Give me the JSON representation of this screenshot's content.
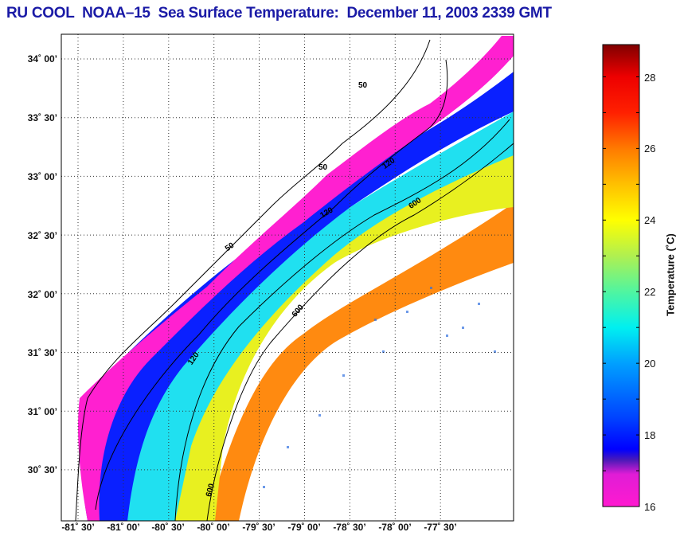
{
  "title": "RU COOL  NOAA–15  Sea Surface Temperature:  December 11, 2003 2339 GMT",
  "map": {
    "lat_labels": [
      "34˚ 00’",
      "33˚ 30’",
      "33˚ 00’",
      "32˚ 30’",
      "32˚ 00’",
      "31˚ 30’",
      "31˚ 00’",
      "30˚ 30’"
    ],
    "lon_labels": [
      "-81˚ 30’",
      "-81˚ 00’",
      "-80˚ 30’",
      "-80˚ 00’",
      "-79˚ 30’",
      "-79˚ 00’",
      "-78˚ 30’",
      "-78˚ 00’",
      "-77˚ 30’"
    ],
    "isobath_labels": [
      "50",
      "120",
      "600"
    ],
    "colors": {
      "frame": "#000000",
      "land": "#ffffff",
      "grid": "#333333"
    }
  },
  "colorbar": {
    "title": "Temperature (˚C)",
    "ticks": [
      "16",
      "18",
      "20",
      "22",
      "24",
      "26",
      "28"
    ],
    "range": [
      16,
      28.9
    ],
    "stops": [
      {
        "t": 16,
        "color": "#ff1ad0"
      },
      {
        "t": 16.9,
        "color": "#e01cd6"
      },
      {
        "t": 17.3,
        "color": "#4a1ab8"
      },
      {
        "t": 17.6,
        "color": "#0000ff"
      },
      {
        "t": 18.5,
        "color": "#0044ff"
      },
      {
        "t": 20,
        "color": "#00a0ff"
      },
      {
        "t": 21,
        "color": "#00f0f0"
      },
      {
        "t": 22,
        "color": "#50f5a0"
      },
      {
        "t": 23,
        "color": "#b0f050"
      },
      {
        "t": 24,
        "color": "#ffff00"
      },
      {
        "t": 25,
        "color": "#ffc000"
      },
      {
        "t": 26,
        "color": "#ff7a00"
      },
      {
        "t": 27,
        "color": "#ff2000"
      },
      {
        "t": 28,
        "color": "#ee0000"
      },
      {
        "t": 28.9,
        "color": "#800000"
      }
    ]
  }
}
